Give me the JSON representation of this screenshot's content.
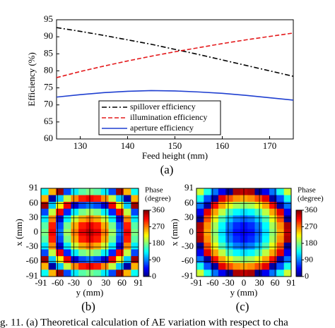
{
  "chart_data": [
    {
      "type": "line",
      "caption": "(a)",
      "xlabel": "Feed height (mm)",
      "ylabel": "Efficiency (%)",
      "x": [
        125,
        130,
        135,
        140,
        145,
        150,
        155,
        160,
        165,
        170,
        175
      ],
      "series": [
        {
          "name": "spillover efficiency",
          "color": "#000000",
          "dash": "dashdot",
          "values": [
            92.7,
            91.6,
            90.4,
            89.1,
            87.8,
            86.3,
            84.8,
            83.2,
            81.6,
            80.0,
            78.4
          ]
        },
        {
          "name": "illumination efficiency",
          "color": "#e41a1c",
          "dash": "dashed",
          "values": [
            78.0,
            79.8,
            81.4,
            82.9,
            84.3,
            85.6,
            86.8,
            88.0,
            89.1,
            90.1,
            91.1
          ]
        },
        {
          "name": "aperture efficiency",
          "color": "#1f3fd0",
          "dash": "solid",
          "values": [
            72.3,
            73.0,
            73.6,
            74.0,
            74.2,
            74.1,
            73.8,
            73.4,
            72.8,
            72.1,
            71.4
          ]
        }
      ],
      "xlim": [
        125,
        175
      ],
      "xticks": [
        130,
        140,
        150,
        160,
        170
      ],
      "ylim": [
        60,
        95
      ],
      "yticks": [
        60,
        65,
        70,
        75,
        80,
        85,
        90,
        95
      ],
      "legend": "lower left"
    },
    {
      "type": "heatmap",
      "caption": "(b)",
      "xlabel": "y (mm)",
      "ylabel": "x (mm)",
      "colorbar_label": [
        "Phase",
        "(degree)"
      ],
      "xlim": [
        -91,
        91
      ],
      "ylim": [
        -91,
        91
      ],
      "xticks": [
        -91,
        -60,
        -30,
        0,
        30,
        60,
        91
      ],
      "yticks": [
        -91,
        -60,
        -30,
        0,
        30,
        60,
        91
      ],
      "zlim": [
        0,
        360
      ],
      "zticks": [
        0,
        90,
        180,
        270,
        360
      ],
      "grid": true,
      "values": [
        [
          138,
          252,
          350,
          70,
          129,
          166,
          178,
          166,
          129,
          70,
          350,
          252,
          138
        ],
        [
          252,
          12,
          117,
          203,
          267,
          306,
          320,
          306,
          267,
          203,
          117,
          12,
          252
        ],
        [
          350,
          117,
          228,
          320,
          29,
          71,
          86,
          71,
          29,
          320,
          228,
          117,
          350
        ],
        [
          70,
          203,
          320,
          57,
          130,
          176,
          191,
          176,
          130,
          57,
          320,
          203,
          70
        ],
        [
          129,
          267,
          29,
          130,
          207,
          255,
          272,
          255,
          207,
          130,
          29,
          267,
          129
        ],
        [
          166,
          306,
          71,
          176,
          255,
          306,
          323,
          306,
          255,
          176,
          71,
          306,
          166
        ],
        [
          178,
          320,
          86,
          191,
          272,
          323,
          340,
          323,
          272,
          191,
          86,
          320,
          178
        ],
        [
          166,
          306,
          71,
          176,
          255,
          306,
          323,
          306,
          255,
          176,
          71,
          306,
          166
        ],
        [
          129,
          267,
          29,
          130,
          207,
          255,
          272,
          255,
          207,
          130,
          29,
          267,
          129
        ],
        [
          70,
          203,
          320,
          57,
          130,
          176,
          191,
          176,
          130,
          57,
          320,
          203,
          70
        ],
        [
          350,
          117,
          228,
          320,
          29,
          71,
          86,
          71,
          29,
          320,
          228,
          117,
          350
        ],
        [
          252,
          12,
          117,
          203,
          267,
          306,
          320,
          306,
          267,
          203,
          117,
          12,
          252
        ],
        [
          138,
          252,
          350,
          70,
          129,
          166,
          178,
          166,
          129,
          70,
          350,
          252,
          138
        ]
      ]
    },
    {
      "type": "heatmap",
      "caption": "(c)",
      "xlabel": "y (mm)",
      "ylabel": "x (mm)",
      "colorbar_label": [
        "Phase",
        "(degree)"
      ],
      "xlim": [
        -91,
        91
      ],
      "ylim": [
        -91,
        91
      ],
      "xticks": [
        -91,
        -60,
        -30,
        0,
        30,
        60,
        91
      ],
      "yticks": [
        -91,
        -60,
        -30,
        0,
        30,
        60,
        91
      ],
      "zlim": [
        0,
        360
      ],
      "zticks": [
        0,
        90,
        180,
        270,
        360
      ],
      "grid": true,
      "values": [
        [
          207,
          142,
          86,
          40,
          6,
          345,
          338,
          345,
          6,
          40,
          86,
          142,
          207
        ],
        [
          142,
          73,
          13,
          324,
          287,
          265,
          257,
          265,
          287,
          324,
          13,
          73,
          142
        ],
        [
          86,
          13,
          310,
          257,
          218,
          194,
          185,
          194,
          218,
          257,
          310,
          13,
          86
        ],
        [
          40,
          324,
          257,
          202,
          160,
          134,
          125,
          134,
          160,
          202,
          257,
          324,
          40
        ],
        [
          6,
          287,
          218,
          160,
          116,
          88,
          79,
          88,
          116,
          160,
          218,
          287,
          6
        ],
        [
          345,
          265,
          194,
          134,
          88,
          60,
          50,
          60,
          88,
          134,
          194,
          265,
          345
        ],
        [
          338,
          257,
          185,
          125,
          79,
          50,
          40,
          50,
          79,
          125,
          185,
          257,
          338
        ],
        [
          345,
          265,
          194,
          134,
          88,
          60,
          50,
          60,
          88,
          134,
          194,
          265,
          345
        ],
        [
          6,
          287,
          218,
          160,
          116,
          88,
          79,
          88,
          116,
          160,
          218,
          287,
          6
        ],
        [
          40,
          324,
          257,
          202,
          160,
          134,
          125,
          134,
          160,
          202,
          257,
          324,
          40
        ],
        [
          86,
          13,
          310,
          257,
          218,
          194,
          185,
          194,
          218,
          257,
          310,
          13,
          86
        ],
        [
          142,
          73,
          13,
          324,
          287,
          265,
          257,
          265,
          287,
          324,
          13,
          73,
          142
        ],
        [
          207,
          142,
          86,
          40,
          6,
          345,
          338,
          345,
          6,
          40,
          86,
          142,
          207
        ]
      ]
    }
  ],
  "caption_text": "g. 11.   (a) Theoretical calculation of AE variation with respect to cha"
}
